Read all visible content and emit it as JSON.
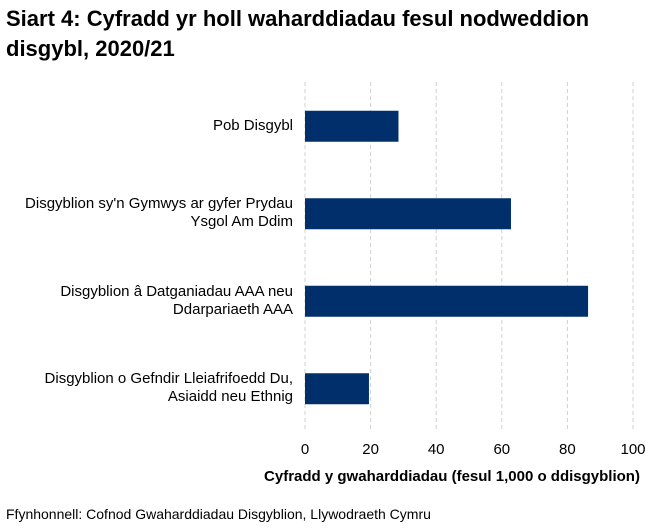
{
  "chart_data": {
    "type": "bar",
    "orientation": "horizontal",
    "title": "Siart 4: Cyfradd yr holl waharddiadau fesul nodweddion disgybl, 2020/21",
    "categories": [
      "Pob Disgybl",
      "Disgyblion sy'n Gymwys ar gyfer Prydau Ysgol Am Ddim",
      "Disgyblion â Datganiadau AAA neu Ddarpariaeth AAA",
      "Disgyblion o Gefndir Lleiafrifoedd Du, Asiaidd neu Ethnig"
    ],
    "values": [
      28.5,
      62.8,
      86.3,
      19.5
    ],
    "color": "#002f6c",
    "xlim": [
      0,
      100
    ],
    "xticks": [
      0,
      20,
      40,
      60,
      80,
      100
    ],
    "grid": true,
    "xlabel": "Cyfradd y gwaharddiadau (fesul 1,000 o ddisgyblion)",
    "source": "Ffynhonnell: Cofnod Gwaharddiadau Disgyblion, Llywodraeth Cymru"
  }
}
